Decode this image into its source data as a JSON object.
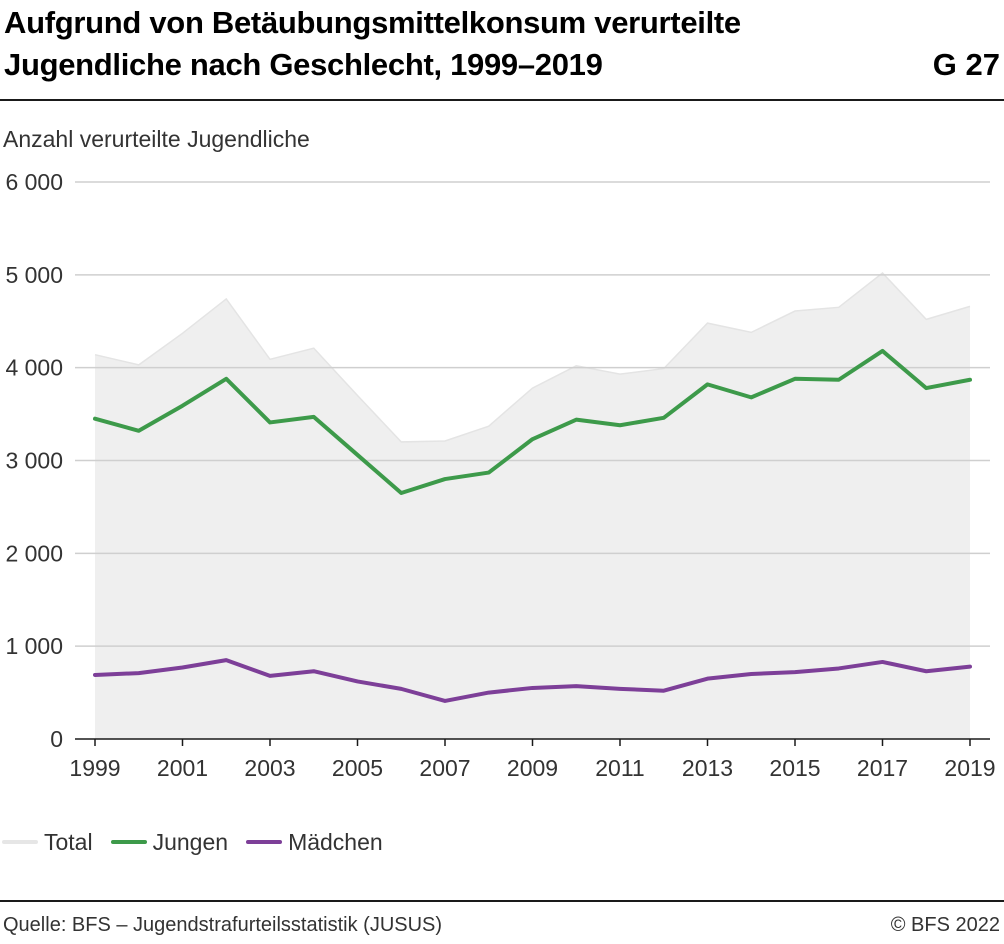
{
  "header": {
    "title": "Aufgrund von Betäubungsmittelkonsum verurteilte Jugendliche nach Geschlecht, 1999–2019",
    "code": "G 27"
  },
  "footer": {
    "source": "Quelle: BFS – Jugendstrafurteilsstatistik (JUSUS)",
    "copyright": "© BFS 2022"
  },
  "chart_data": {
    "type": "line",
    "title": "Aufgrund von Betäubungsmittelkonsum verurteilte Jugendliche nach Geschlecht, 1999–2019",
    "ylabel": "Anzahl verurteilte Jugendliche",
    "xlabel": "",
    "ylim": [
      0,
      6000
    ],
    "yticks": [
      0,
      1000,
      2000,
      3000,
      4000,
      5000,
      6000
    ],
    "ytick_labels": [
      "0",
      "1 000",
      "2 000",
      "3 000",
      "4 000",
      "5 000",
      "6 000"
    ],
    "xtick_labels": [
      "1999",
      "2001",
      "2003",
      "2005",
      "2007",
      "2009",
      "2011",
      "2013",
      "2015",
      "2017",
      "2019"
    ],
    "grid": true,
    "legend_position": "bottom-left",
    "x": [
      1999,
      2000,
      2001,
      2002,
      2003,
      2004,
      2005,
      2006,
      2007,
      2008,
      2009,
      2010,
      2011,
      2012,
      2013,
      2014,
      2015,
      2016,
      2017,
      2018,
      2019
    ],
    "series": [
      {
        "name": "Total",
        "style": "area",
        "color": "#efefef",
        "values": [
          4140,
          4030,
          4370,
          4740,
          4090,
          4210,
          3700,
          3200,
          3210,
          3370,
          3780,
          4020,
          3930,
          3990,
          4480,
          4380,
          4610,
          4650,
          5020,
          4520,
          4660
        ]
      },
      {
        "name": "Jungen",
        "style": "line",
        "color": "#3d9a4a",
        "values": [
          3450,
          3320,
          3590,
          3880,
          3410,
          3470,
          3060,
          2650,
          2800,
          2870,
          3230,
          3440,
          3380,
          3460,
          3820,
          3680,
          3880,
          3870,
          4180,
          3780,
          3870
        ]
      },
      {
        "name": "Mädchen",
        "style": "line",
        "color": "#7d3f98",
        "values": [
          690,
          710,
          770,
          850,
          680,
          730,
          620,
          540,
          410,
          500,
          550,
          570,
          540,
          520,
          650,
          700,
          720,
          760,
          830,
          730,
          780
        ]
      }
    ]
  }
}
